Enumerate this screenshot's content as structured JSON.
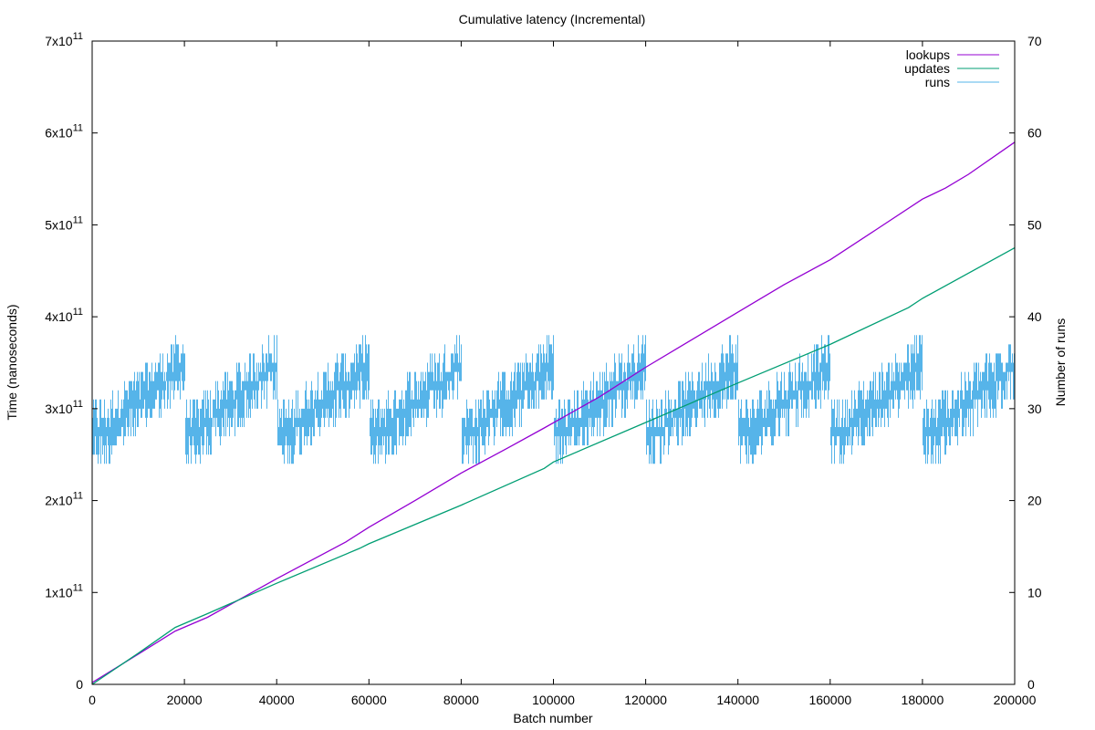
{
  "chart_data": {
    "type": "line",
    "title": "Cumulative latency (Incremental)",
    "xlabel": "Batch number",
    "ylabel": "Time (nanoseconds)",
    "y2label": "Number of runs",
    "xlim": [
      0,
      200000
    ],
    "ylim": [
      0,
      700000000000
    ],
    "y2lim": [
      0,
      70
    ],
    "grid": false,
    "legend_position": "top-right",
    "x_ticks": [
      0,
      20000,
      40000,
      60000,
      80000,
      100000,
      120000,
      140000,
      160000,
      180000,
      200000
    ],
    "x_tick_labels": [
      "0",
      "20000",
      "40000",
      "60000",
      "80000",
      "100000",
      "120000",
      "140000",
      "160000",
      "180000",
      "200000"
    ],
    "y_ticks": [
      0,
      100000000000,
      200000000000,
      300000000000,
      400000000000,
      500000000000,
      600000000000,
      700000000000
    ],
    "y_tick_labels": [
      {
        "base": "0",
        "exp": ""
      },
      {
        "base": "1x10",
        "exp": "11"
      },
      {
        "base": "2x10",
        "exp": "11"
      },
      {
        "base": "3x10",
        "exp": "11"
      },
      {
        "base": "4x10",
        "exp": "11"
      },
      {
        "base": "5x10",
        "exp": "11"
      },
      {
        "base": "6x10",
        "exp": "11"
      },
      {
        "base": "7x10",
        "exp": "11"
      }
    ],
    "y2_ticks": [
      0,
      10,
      20,
      30,
      40,
      50,
      60,
      70
    ],
    "y2_tick_labels": [
      "0",
      "10",
      "20",
      "30",
      "40",
      "50",
      "60",
      "70"
    ],
    "series": [
      {
        "name": "lookups",
        "axis": "y",
        "color": "#9400d3",
        "x": [
          0,
          10000,
          18000,
          25000,
          40000,
          55000,
          60000,
          70000,
          80000,
          90000,
          98000,
          110000,
          120000,
          130000,
          140000,
          150000,
          160000,
          170000,
          180000,
          185000,
          190000,
          200000
        ],
        "y": [
          2000000000,
          33000000000,
          58000000000,
          73000000000,
          115000000000,
          155000000000,
          171000000000,
          200000000000,
          230000000000,
          257000000000,
          279000000000,
          313000000000,
          345000000000,
          375000000000,
          405000000000,
          435000000000,
          462000000000,
          495000000000,
          528000000000,
          540000000000,
          555000000000,
          590000000000
        ]
      },
      {
        "name": "updates",
        "axis": "y",
        "color": "#009e73",
        "x": [
          0,
          10000,
          18000,
          25000,
          40000,
          58000,
          60000,
          80000,
          98000,
          100000,
          120000,
          140000,
          160000,
          177000,
          180000,
          200000
        ],
        "y": [
          0,
          34000000000,
          62000000000,
          77000000000,
          110000000000,
          148000000000,
          153000000000,
          195000000000,
          235000000000,
          242000000000,
          285000000000,
          328000000000,
          370000000000,
          410000000000,
          420000000000,
          475000000000
        ]
      },
      {
        "name": "runs",
        "axis": "y2",
        "color": "#56b4e9",
        "cycle_length": 20000,
        "base_values": [
          28,
          28,
          28,
          28,
          29,
          29,
          30,
          30,
          31,
          31,
          31,
          32,
          32,
          33,
          33,
          33,
          34,
          34,
          35,
          35
        ],
        "range_min": 22,
        "range_max": 40
      }
    ]
  }
}
